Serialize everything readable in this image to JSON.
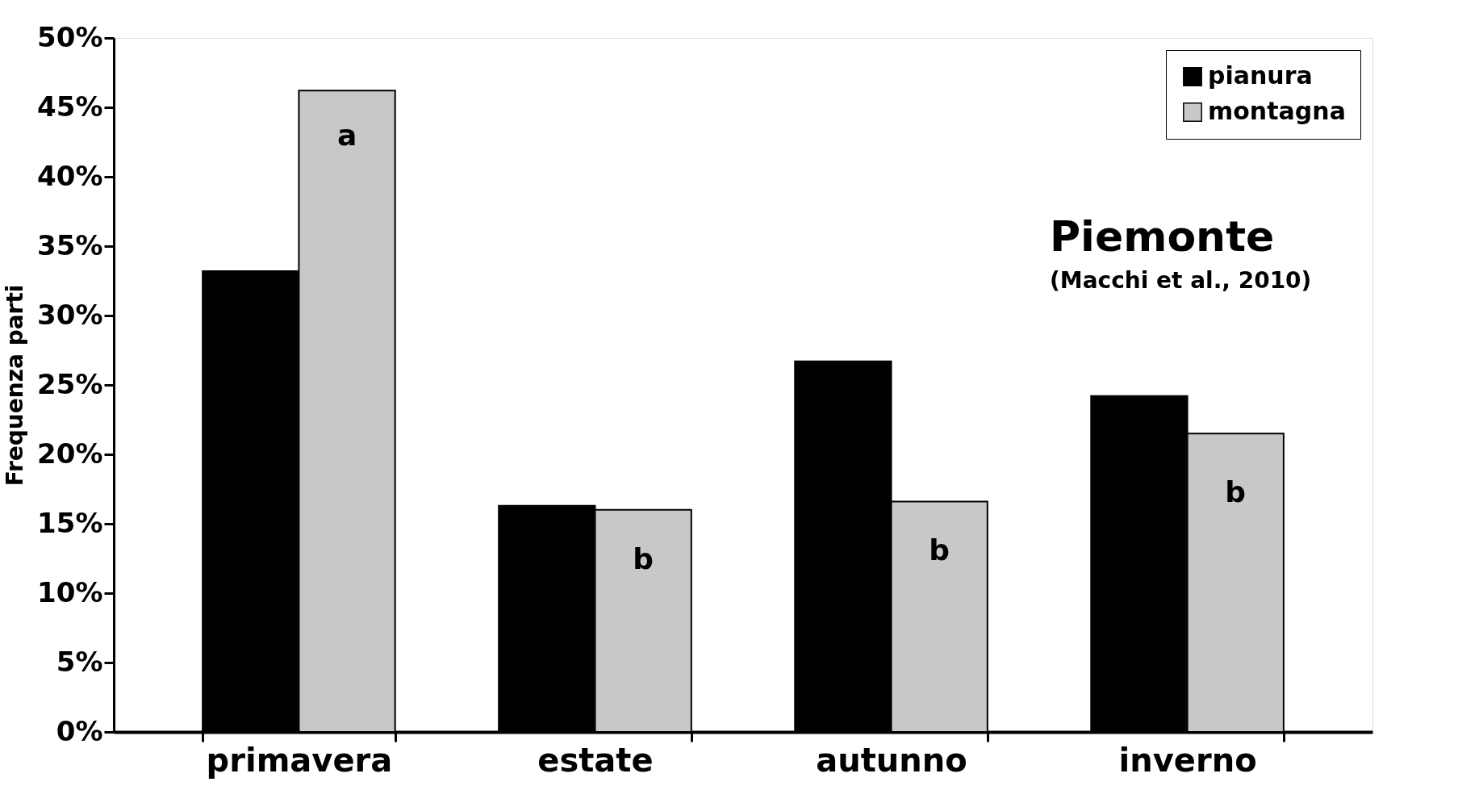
{
  "chart_data": {
    "type": "bar",
    "title": "Piemonte",
    "subtitle": "(Macchi et al., 2010)",
    "ylabel": "Frequenza parti",
    "categories": [
      "primavera",
      "estate",
      "autunno",
      "inverno"
    ],
    "series": [
      {
        "name": "pianura",
        "color": "#000000",
        "values": [
          33.2,
          16.3,
          26.7,
          24.2
        ]
      },
      {
        "name": "montagna",
        "color": "#c8c8c8",
        "values": [
          46.2,
          16.0,
          16.6,
          21.5
        ]
      }
    ],
    "ylim": [
      0,
      50
    ],
    "yticks": [
      {
        "value": 0,
        "label": "0%"
      },
      {
        "value": 5,
        "label": "5%"
      },
      {
        "value": 10,
        "label": "10%"
      },
      {
        "value": 15,
        "label": "15%"
      },
      {
        "value": 20,
        "label": "20%"
      },
      {
        "value": 25,
        "label": "25%"
      },
      {
        "value": 30,
        "label": "30%"
      },
      {
        "value": 35,
        "label": "35%"
      },
      {
        "value": 40,
        "label": "40%"
      },
      {
        "value": 45,
        "label": "45%"
      },
      {
        "value": 50,
        "label": "50%"
      }
    ],
    "annotations": [
      {
        "text": "a",
        "x": "primavera",
        "y": 42.9
      },
      {
        "text": "b",
        "x": "estate",
        "y": 12.4
      },
      {
        "text": "b",
        "x": "autunno",
        "y": 13.0
      },
      {
        "text": "b",
        "x": "inverno",
        "y": 17.2
      }
    ],
    "grid": false,
    "legend": "top right"
  }
}
